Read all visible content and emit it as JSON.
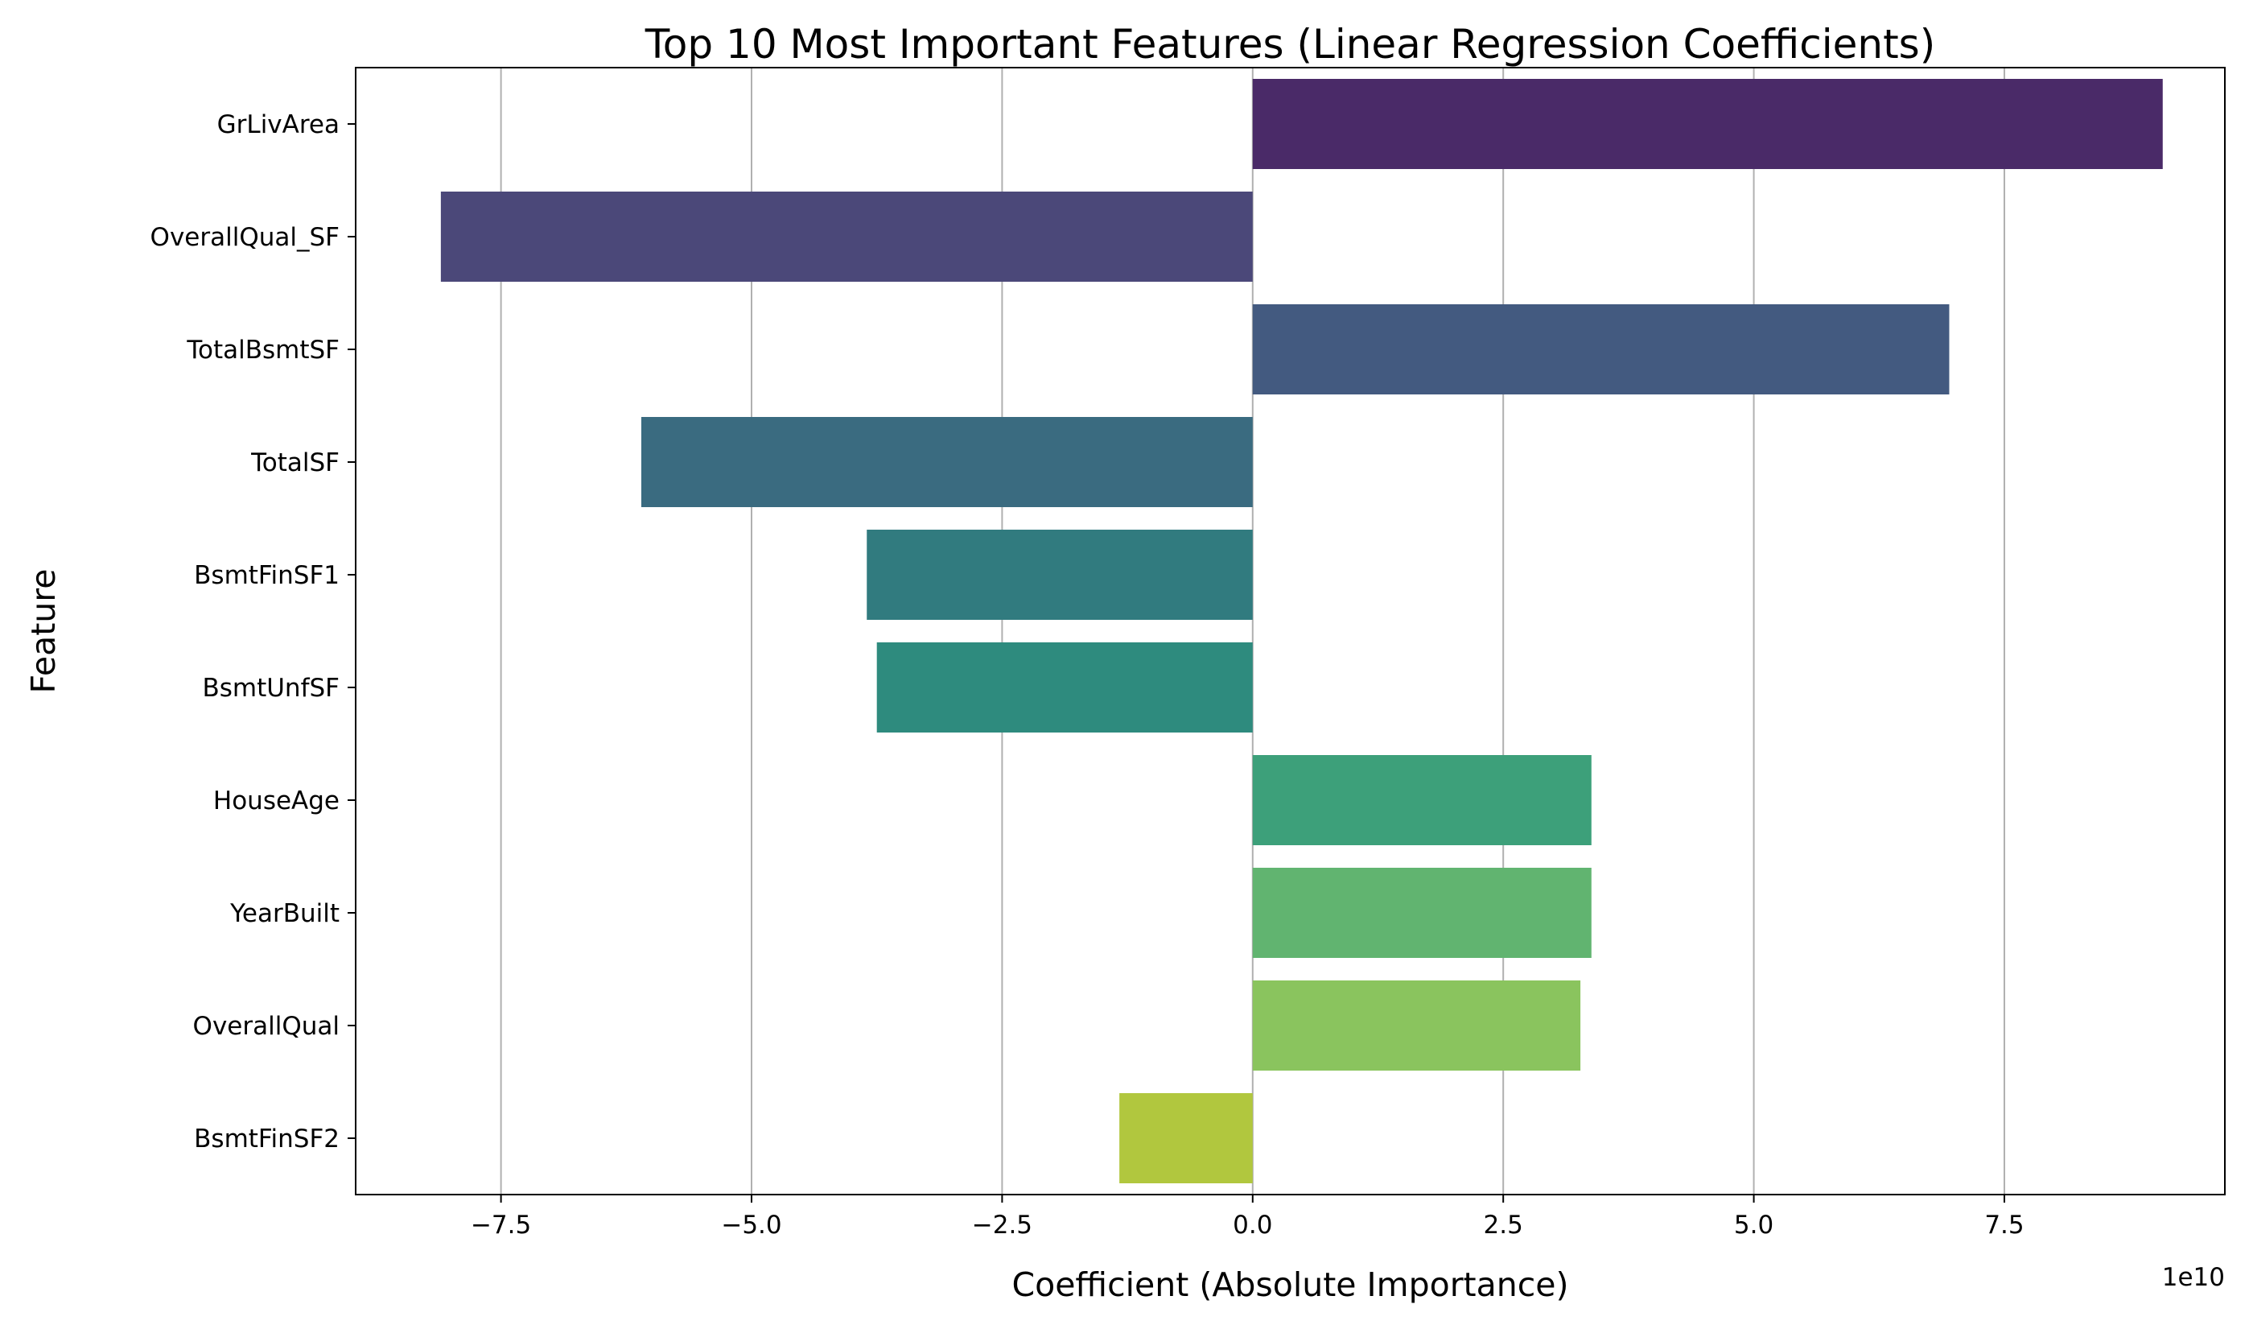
{
  "chart_data": {
    "type": "bar",
    "orientation": "horizontal",
    "title": "Top 10 Most Important Features (Linear Regression Coefficients)",
    "xlabel": "Coefficient (Absolute Importance)",
    "ylabel": "Feature",
    "x_offset_label": "1e10",
    "xlim": [
      -8.95,
      9.7
    ],
    "xticks": [
      -7.5,
      -5.0,
      -2.5,
      0.0,
      2.5,
      5.0,
      7.5
    ],
    "xtick_labels": [
      "−7.5",
      "−5.0",
      "−2.5",
      "0.0",
      "2.5",
      "5.0",
      "7.5"
    ],
    "grid": "x",
    "categories": [
      "GrLivArea",
      "OverallQual_SF",
      "TotalBsmtSF",
      "TotalSF",
      "BsmtFinSF1",
      "BsmtUnfSF",
      "HouseAge",
      "YearBuilt",
      "OverallQual",
      "BsmtFinSF2"
    ],
    "values": [
      9.08,
      -8.1,
      6.95,
      -6.1,
      -3.85,
      -3.75,
      3.38,
      3.38,
      3.27,
      -1.33
    ],
    "colors": [
      "#4a2a68",
      "#4b4879",
      "#435a80",
      "#3a6b80",
      "#317b7f",
      "#2e8b7e",
      "#3da07a",
      "#61b470",
      "#8ac45e",
      "#b1c73e"
    ]
  }
}
